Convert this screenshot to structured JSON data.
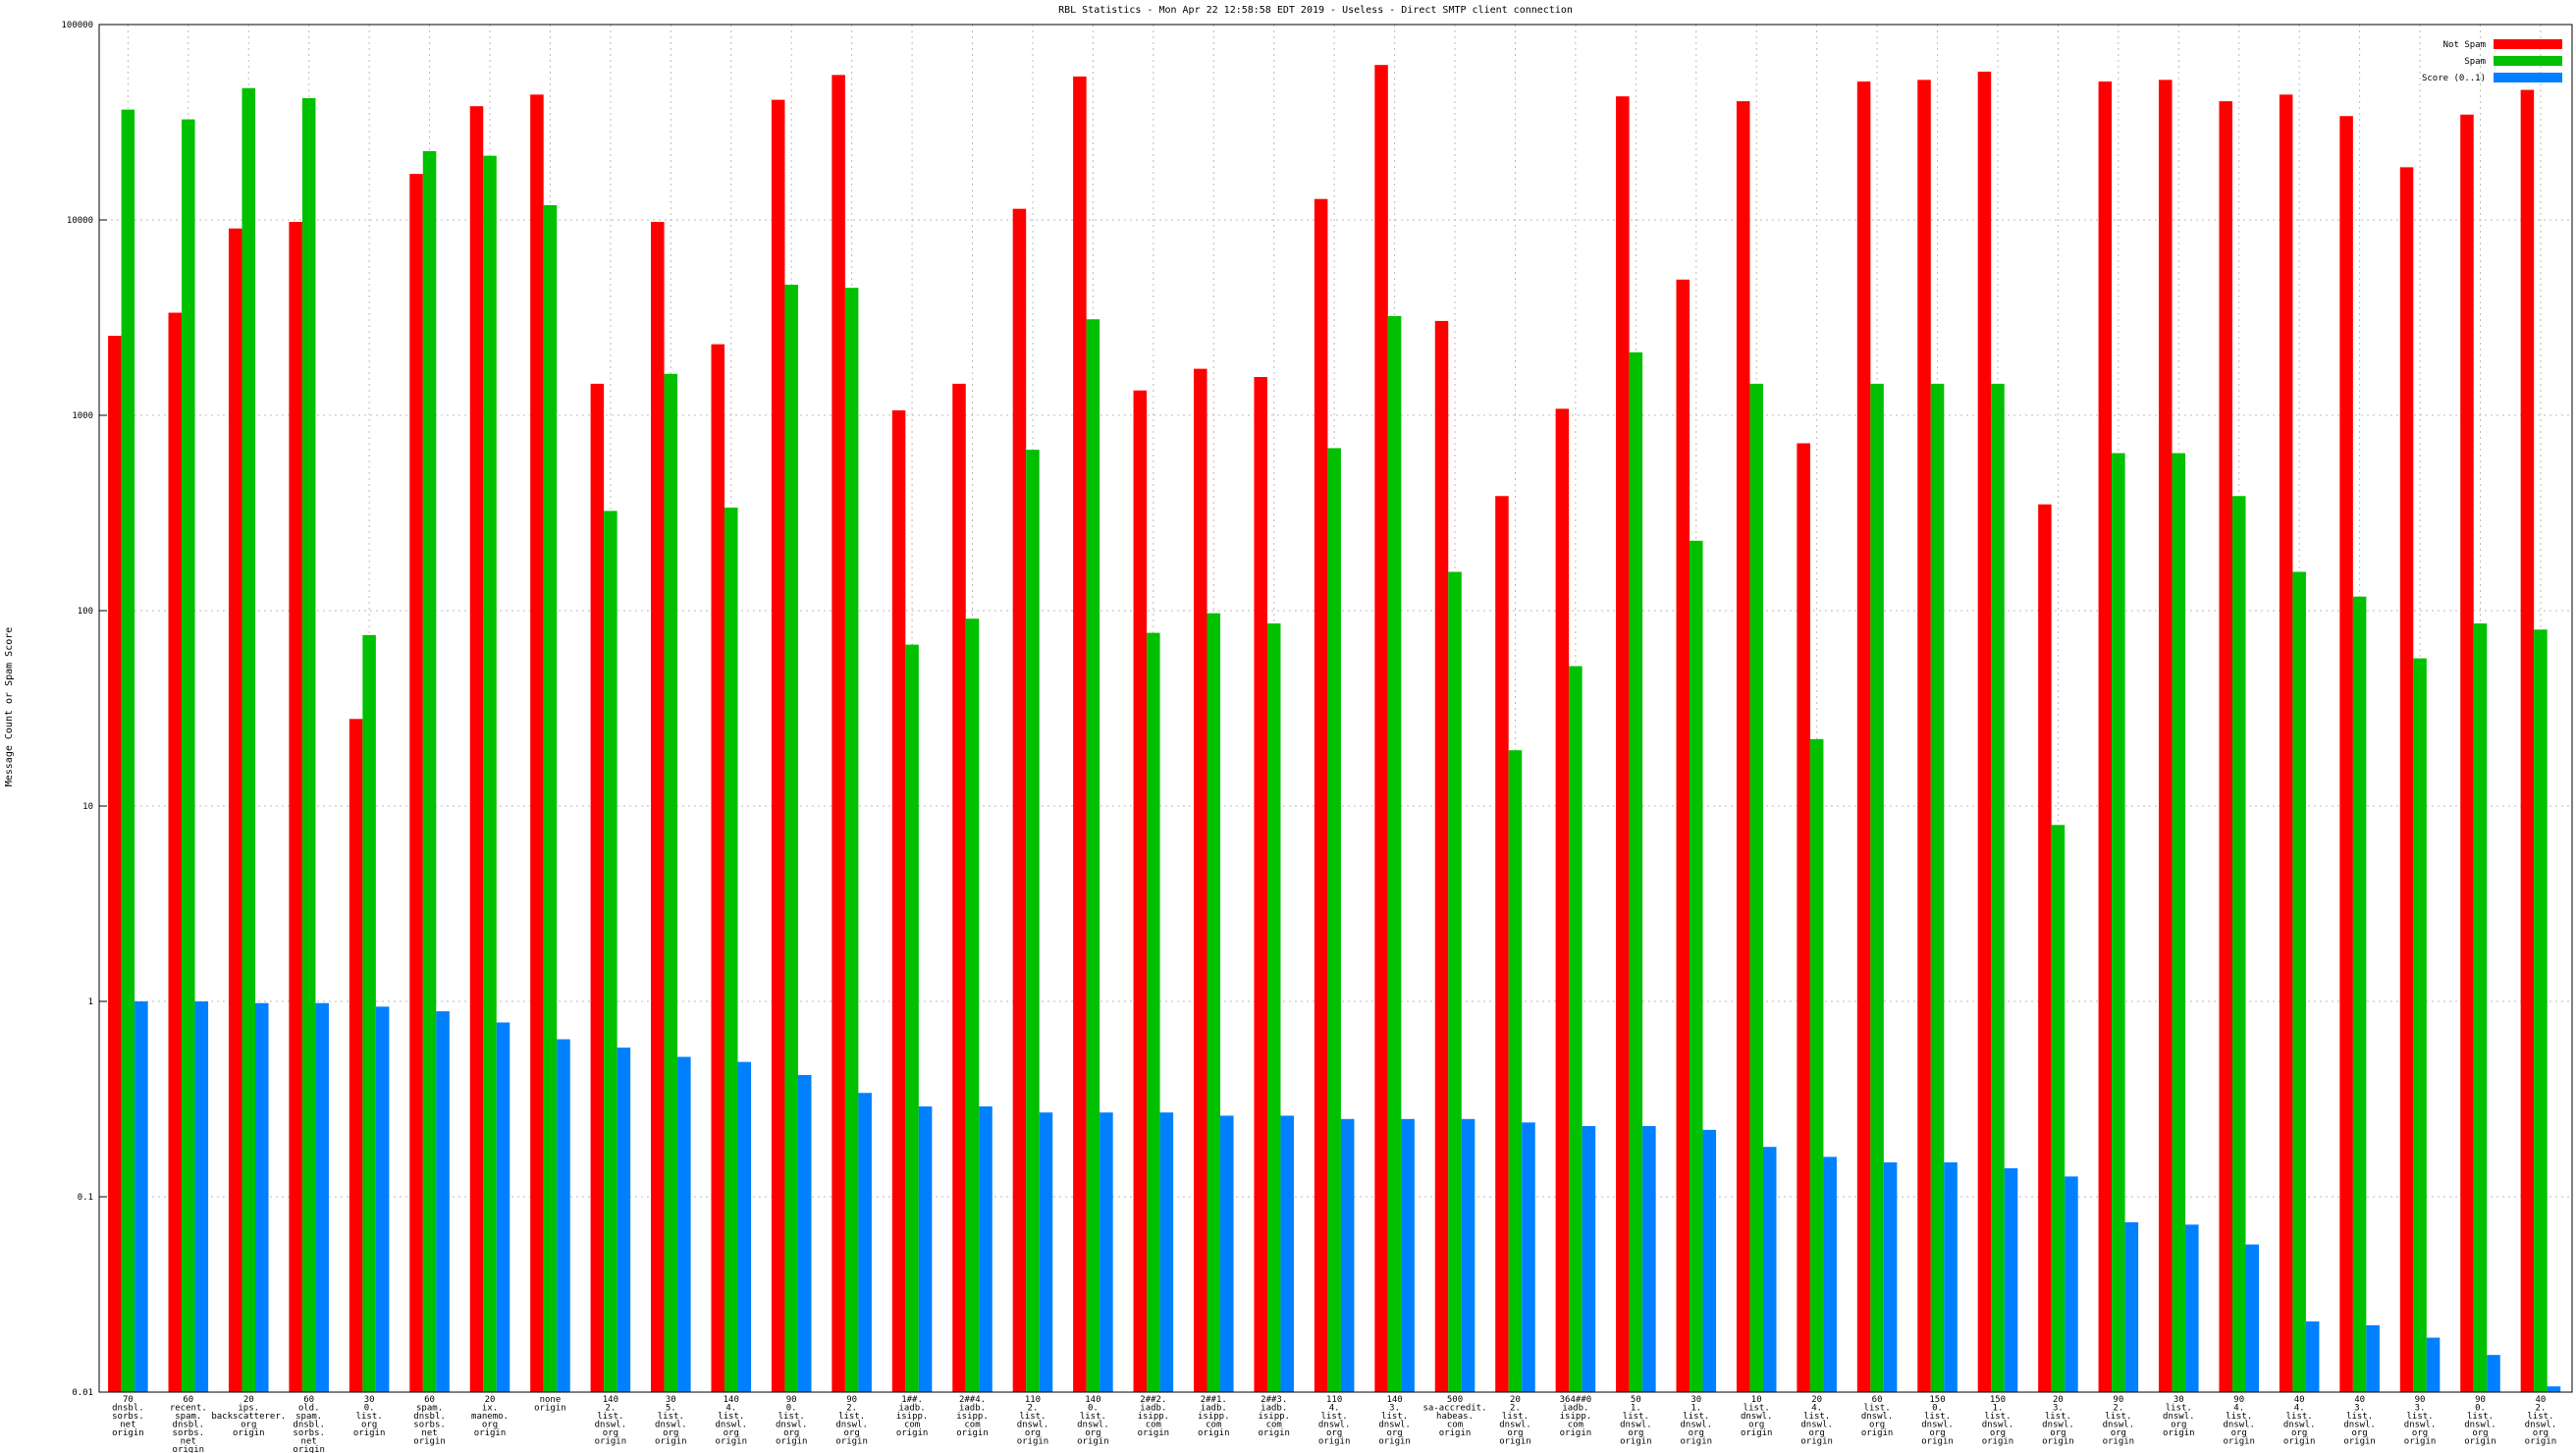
{
  "chart_data": {
    "type": "bar",
    "title": "RBL Statistics - Mon Apr 22 12:58:58 EDT 2019 - Useless - Direct SMTP client connection",
    "y_label": "Message Count or Spam Score",
    "log_scale": true,
    "grid": true,
    "legend_position": "top-right",
    "ylim": [
      0.01,
      100000
    ],
    "yticks": [
      0.01,
      0.1,
      1,
      10,
      100,
      1000,
      10000,
      100000
    ],
    "categories": [
      "70\ndnsbl.\nsorbs.\nnet\norigin",
      "60\nrecent.\nspam.\ndnsbl.\nsorbs.\nnet\norigin",
      "20\nips.\nbackscatterer.\norg\norigin",
      "60\nold.\nspam.\ndnsbl.\nsorbs.\nnet\norigin",
      "30\n0.\nlist.\norg\norigin",
      "60\nspam.\ndnsbl.\nsorbs.\nnet\norigin",
      "20\nix.\nmanemo.\norg\norigin",
      "none\norigin",
      "140\n2.\nlist.\ndnswl.\norg\norigin",
      "30\n5.\nlist.\ndnswl.\norg\norigin",
      "140\n4.\nlist.\ndnswl.\norg\norigin",
      "90\n0.\nlist.\ndnswl.\norg\norigin",
      "90\n2.\nlist.\ndnswl.\norg\norigin",
      "1##.\niadb.\nisipp.\ncom\norigin",
      "2##4.\niadb.\nisipp.\ncom\norigin",
      "110\n2.\nlist.\ndnswl.\norg\norigin",
      "140\n0.\nlist.\ndnswl.\norg\norigin",
      "2##2.\niadb.\nisipp.\ncom\norigin",
      "2##1.\niadb.\nisipp.\ncom\norigin",
      "2##3.\niadb.\nisipp.\ncom\norigin",
      "110\n4.\nlist.\ndnswl.\norg\norigin",
      "140\n3.\nlist.\ndnswl.\norg\norigin",
      "500\nsa-accredit.\nhabeas.\ncom\norigin",
      "20\n2.\nlist.\ndnswl.\norg\norigin",
      "364##0\niadb.\nisipp.\ncom\norigin",
      "50\n1.\nlist.\ndnswl.\norg\norigin",
      "30\n1.\nlist.\ndnswl.\norg\norigin",
      "10\nlist.\ndnswl.\norg\norigin",
      "20\n4.\nlist.\ndnswl.\norg\norigin",
      "60\nlist.\ndnswl.\norg\norigin",
      "150\n0.\nlist.\ndnswl.\norg\norigin",
      "150\n1.\nlist.\ndnswl.\norg\norigin",
      "20\n3.\nlist.\ndnswl.\norg\norigin",
      "90\n2.\nlist.\ndnswl.\norg\norigin",
      "30\nlist.\ndnswl.\norg\norigin",
      "90\n4.\nlist.\ndnswl.\norg\norigin",
      "40\n4.\nlist.\ndnswl.\norg\norigin",
      "40\n3.\nlist.\ndnswl.\norg\norigin",
      "90\n3.\nlist.\ndnswl.\norg\norigin",
      "90\n0.\nlist.\ndnswl.\norg\norigin",
      "40\n2.\nlist.\ndnswl.\norg\norigin"
    ],
    "series": [
      {
        "name": "Not Spam",
        "color": "#ff0000",
        "values": [
          2550,
          3350,
          9040,
          9770,
          27.9,
          17200,
          38200,
          43800,
          1450,
          9770,
          2310,
          41200,
          55200,
          1060,
          1450,
          11400,
          54200,
          1340,
          1730,
          1570,
          12800,
          62100,
          3040,
          386,
          1080,
          42900,
          4950,
          40500,
          719,
          51100,
          52100,
          57400,
          350,
          51100,
          52100,
          40500,
          43800,
          34000,
          18600,
          34600,
          46300
        ]
      },
      {
        "name": "Spam",
        "color": "#00c000",
        "values": [
          36700,
          32700,
          47300,
          42000,
          75,
          22500,
          21300,
          11900,
          324,
          1630,
          337,
          4660,
          4490,
          67,
          91,
          666,
          3100,
          77,
          97,
          86,
          679,
          3220,
          158,
          19.3,
          52,
          2100,
          228,
          1450,
          22,
          1450,
          1450,
          1450,
          8.0,
          640,
          640,
          386,
          158,
          118,
          57,
          86,
          80
        ]
      },
      {
        "name": "Score (0..1)",
        "color": "#0080ff",
        "values": [
          1.0,
          1.0,
          0.98,
          0.98,
          0.94,
          0.89,
          0.78,
          0.64,
          0.58,
          0.52,
          0.49,
          0.42,
          0.34,
          0.29,
          0.29,
          0.27,
          0.27,
          0.27,
          0.26,
          0.26,
          0.25,
          0.25,
          0.25,
          0.24,
          0.23,
          0.23,
          0.22,
          0.18,
          0.16,
          0.15,
          0.15,
          0.14,
          0.127,
          0.074,
          0.072,
          0.057,
          0.023,
          0.022,
          0.019,
          0.0155,
          0.0107
        ]
      }
    ]
  }
}
